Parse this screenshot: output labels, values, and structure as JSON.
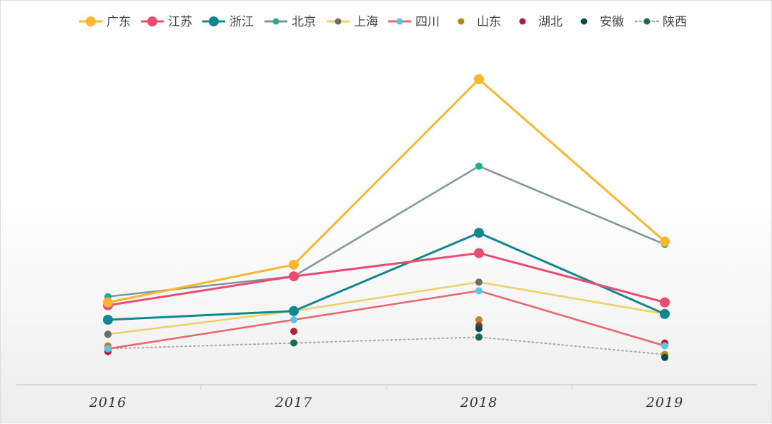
{
  "chart_data": {
    "type": "line",
    "title": "",
    "xlabel": "",
    "ylabel": "",
    "categories": [
      "2016",
      "2017",
      "2018",
      "2019"
    ],
    "ylim": [
      0,
      100
    ],
    "grid": false,
    "legend_position": "top",
    "series": [
      {
        "name": "广东",
        "values": [
          23,
          36,
          100,
          44
        ],
        "color": "#f7b731",
        "style": "line-big"
      },
      {
        "name": "江苏",
        "values": [
          22,
          32,
          40,
          23
        ],
        "color": "#ea4c6f",
        "style": "line-big"
      },
      {
        "name": "浙江",
        "values": [
          17,
          20,
          47,
          19
        ],
        "color": "#13878f",
        "style": "line-big"
      },
      {
        "name": "北京",
        "values": [
          25,
          32,
          70,
          43
        ],
        "color": "#7f959c",
        "marker": "#1fae90",
        "style": "line-small"
      },
      {
        "name": "上海",
        "values": [
          12,
          20,
          30,
          19
        ],
        "color": "#efd066",
        "marker": "#6b6b6b",
        "style": "line-small"
      },
      {
        "name": "四川",
        "values": [
          7,
          17,
          27,
          8
        ],
        "color": "#e8646a",
        "marker": "#59c4e6",
        "style": "line-small"
      },
      {
        "name": "山东",
        "values": [
          8,
          20,
          17,
          5
        ],
        "color": "#b48a1a",
        "style": "dots"
      },
      {
        "name": "湖北",
        "values": [
          6,
          13,
          15,
          9
        ],
        "color": "#b01e3a",
        "style": "dots"
      },
      {
        "name": "安徽",
        "values": [
          12,
          20,
          14,
          4
        ],
        "color": "#0b4a4f",
        "style": "dots"
      },
      {
        "name": "陕西",
        "values": [
          7,
          9,
          11,
          5
        ],
        "color": "#aaaaaa",
        "marker": "#166b53",
        "style": "dotted-line"
      }
    ]
  }
}
